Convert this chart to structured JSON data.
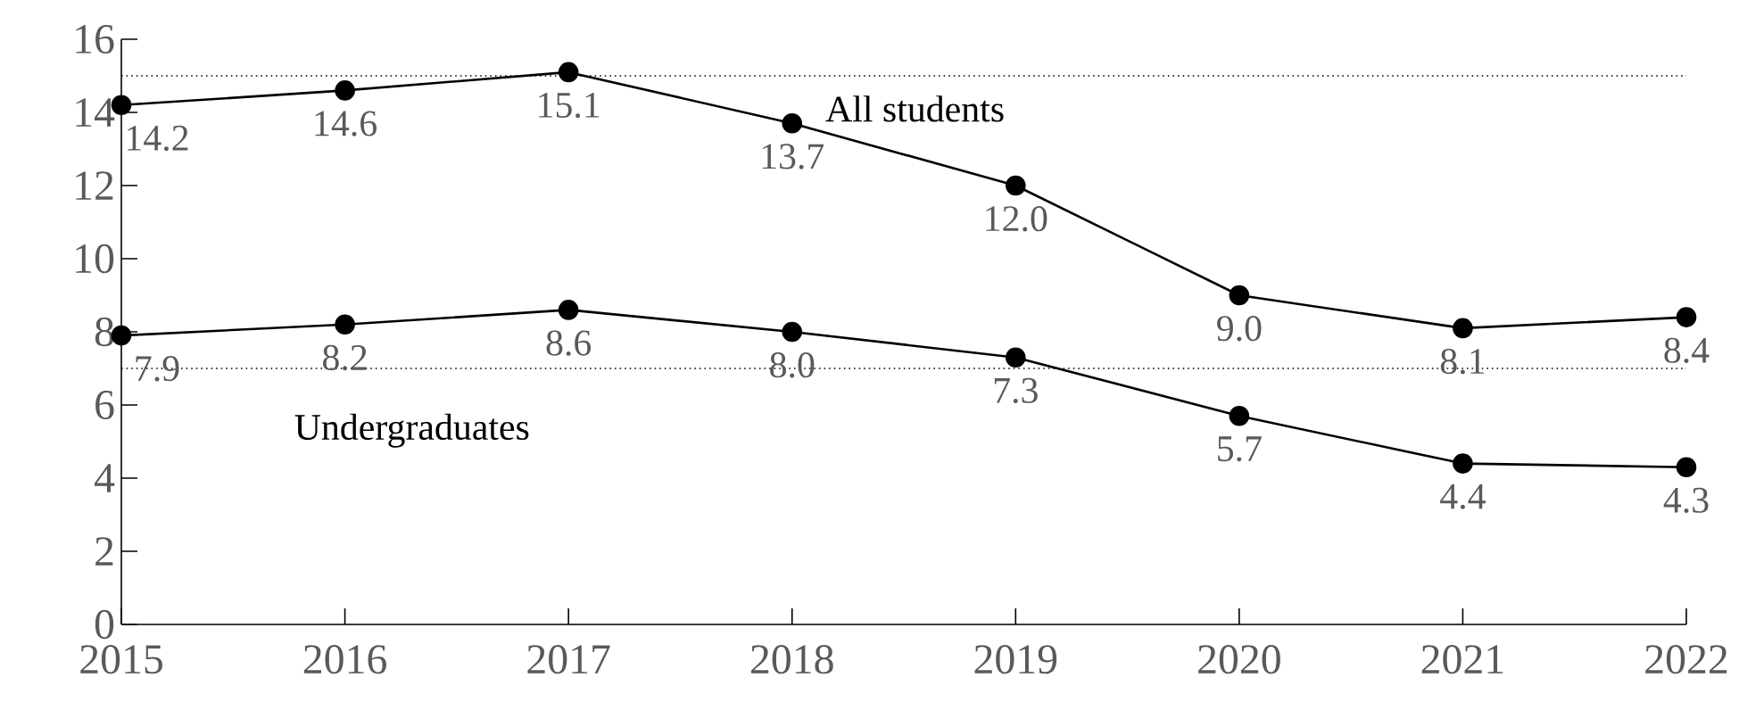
{
  "chart_data": {
    "type": "line",
    "x": [
      2015,
      2016,
      2017,
      2018,
      2019,
      2020,
      2021,
      2022
    ],
    "series": [
      {
        "name": "All students",
        "color": "#000000",
        "values": [
          14.2,
          14.6,
          15.1,
          13.7,
          12.0,
          9.0,
          8.1,
          8.4
        ],
        "value_labels": [
          "14.2",
          "14.6",
          "15.1",
          "13.7",
          "12.0",
          "9.0",
          "8.1",
          "8.4"
        ]
      },
      {
        "name": "Undergraduates",
        "color": "#000000",
        "values": [
          7.9,
          8.2,
          8.6,
          8.0,
          7.3,
          5.7,
          4.4,
          4.3
        ],
        "value_labels": [
          "7.9",
          "8.2",
          "8.6",
          "8.0",
          "7.3",
          "5.7",
          "4.4",
          "4.3"
        ]
      }
    ],
    "xlim": [
      2015,
      2022
    ],
    "xticks": [
      2015,
      2016,
      2017,
      2018,
      2019,
      2020,
      2021,
      2022
    ],
    "ylim": [
      0,
      16
    ],
    "yticks": [
      0,
      2,
      4,
      6,
      8,
      10,
      12,
      14,
      16
    ],
    "ref_lines": [
      {
        "axis": "y",
        "value": 15,
        "color": "#000000",
        "line_style": "dotted"
      },
      {
        "axis": "y",
        "value": 7,
        "color": "#000000",
        "line_style": "dotted"
      }
    ],
    "marker": "circle"
  }
}
